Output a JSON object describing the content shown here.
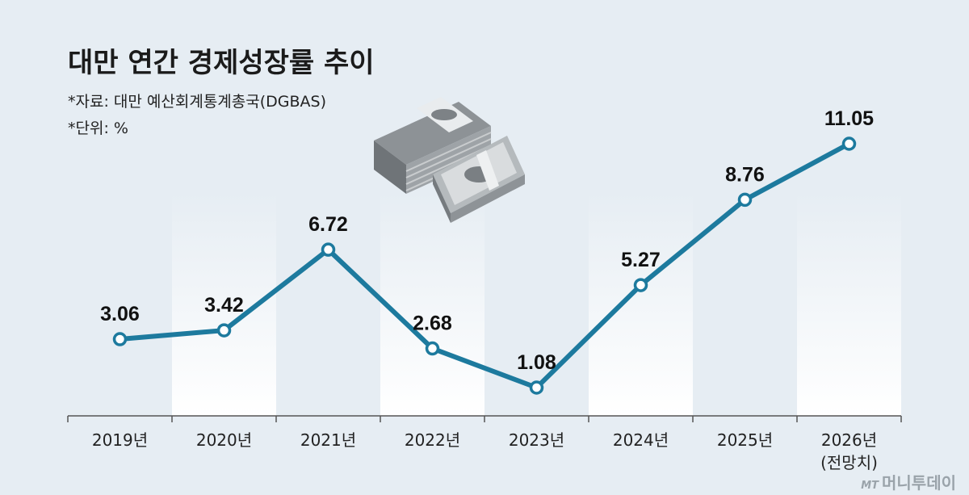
{
  "title": "대만 연간 경제성장률 추이",
  "source_note": "*자료: 대만 예산회계통계총국(DGBAS)",
  "unit_note": "*단위: %",
  "watermark": {
    "small": "MT",
    "brand": "머니투데이"
  },
  "chart_data": {
    "type": "line",
    "title": "대만 연간 경제성장률 추이",
    "categories": [
      "2019년",
      "2020년",
      "2021년",
      "2022년",
      "2023년",
      "2024년",
      "2025년",
      "2026년"
    ],
    "category_sub": [
      "",
      "",
      "",
      "",
      "",
      "",
      "",
      "(전망치)"
    ],
    "values": [
      3.06,
      3.42,
      6.72,
      2.68,
      1.08,
      5.27,
      8.76,
      11.05
    ],
    "value_labels": [
      "3.06",
      "3.42",
      "6.72",
      "2.68",
      "1.08",
      "5.27",
      "8.76",
      "11.05"
    ],
    "xlabel": "",
    "ylabel": "",
    "unit": "%",
    "grid": false,
    "line_color": "#1d7a9e",
    "point_fill": "#ffffff"
  }
}
